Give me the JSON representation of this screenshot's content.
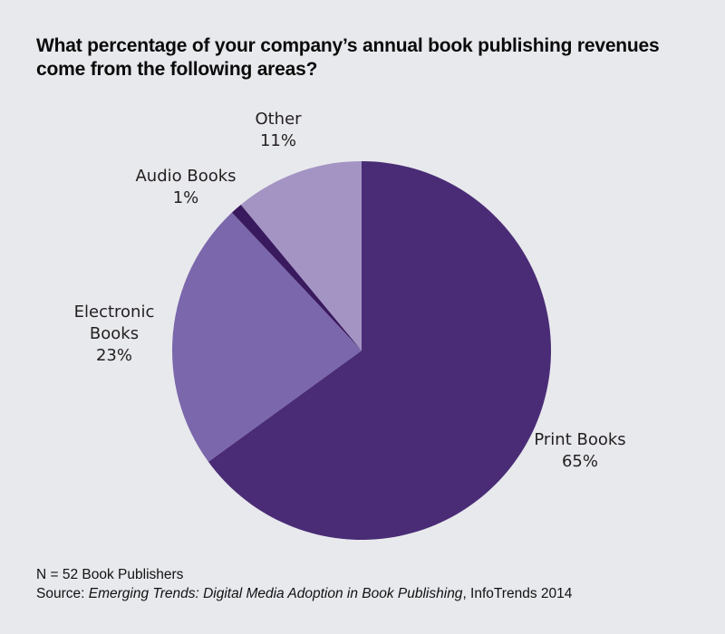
{
  "chart_data": {
    "type": "pie",
    "title_lines": [
      "What percentage of your company’s annual book publishing revenues",
      "come from the following areas?"
    ],
    "start_angle": "12 o'clock",
    "direction": "clockwise",
    "slices": [
      {
        "name": "Print Books",
        "label_lines": [
          "Print Books"
        ],
        "value": 65,
        "value_label": "65%",
        "color": "#4a2c76"
      },
      {
        "name": "Electronic Books",
        "label_lines": [
          "Electronic",
          "Books"
        ],
        "value": 23,
        "value_label": "23%",
        "color": "#7b67ab"
      },
      {
        "name": "Audio Books",
        "label_lines": [
          "Audio Books"
        ],
        "value": 1,
        "value_label": "1%",
        "color": "#3a1a5e"
      },
      {
        "name": "Other",
        "label_lines": [
          "Other"
        ],
        "value": 11,
        "value_label": "11%",
        "color": "#a394c4"
      }
    ]
  },
  "footer": {
    "sample": "N = 52 Book Publishers",
    "source_prefix": "Source: ",
    "source_title": "Emerging Trends: Digital Media Adoption in Book Publishing",
    "source_suffix": ", InfoTrends 2014"
  },
  "colors": {
    "background": "#e8e9ed"
  }
}
